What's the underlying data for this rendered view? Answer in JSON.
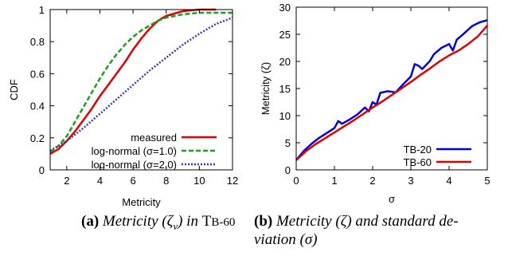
{
  "chart_data": [
    {
      "type": "line",
      "title": "",
      "xlabel": "Metricity",
      "ylabel": "CDF",
      "xlim": [
        1,
        12
      ],
      "ylim": [
        0,
        1
      ],
      "xticks": [
        "2",
        "4",
        "6",
        "8",
        "10",
        "12"
      ],
      "yticks": [
        "0",
        "0.2",
        "0.4",
        "0.6",
        "0.8",
        "1"
      ],
      "legend_position": "bottom-right",
      "series": [
        {
          "name": "measured",
          "color": "#e00000",
          "dash": "solid",
          "x": [
            1,
            1.5,
            2,
            2.5,
            3,
            3.5,
            4,
            4.5,
            5,
            5.5,
            6,
            6.5,
            7,
            7.5,
            8,
            9,
            10,
            11
          ],
          "y": [
            0.1,
            0.13,
            0.18,
            0.24,
            0.31,
            0.38,
            0.46,
            0.53,
            0.6,
            0.67,
            0.75,
            0.82,
            0.88,
            0.93,
            0.96,
            0.99,
            1.0,
            1.0
          ]
        },
        {
          "name": "log-normal (σ=1.0)",
          "color": "#1e9e1e",
          "dash": "dashed",
          "x": [
            1,
            1.5,
            2,
            2.5,
            3,
            3.5,
            4,
            4.5,
            5,
            5.5,
            6,
            6.5,
            7,
            7.5,
            8,
            9,
            10,
            11,
            12
          ],
          "y": [
            0.11,
            0.15,
            0.21,
            0.3,
            0.39,
            0.48,
            0.57,
            0.65,
            0.72,
            0.78,
            0.83,
            0.87,
            0.9,
            0.93,
            0.95,
            0.97,
            0.98,
            0.98,
            0.98
          ]
        },
        {
          "name": "log-normal (σ=2.0)",
          "color": "#3a3aa8",
          "dash": "dotted",
          "x": [
            1,
            2,
            3,
            4,
            5,
            6,
            7,
            8,
            9,
            10,
            11,
            12
          ],
          "y": [
            0.12,
            0.18,
            0.26,
            0.35,
            0.44,
            0.53,
            0.62,
            0.7,
            0.78,
            0.85,
            0.91,
            0.95
          ]
        }
      ]
    },
    {
      "type": "line",
      "title": "",
      "xlabel": "σ",
      "ylabel": "Metricity (ζ)",
      "xlim": [
        0,
        5
      ],
      "ylim": [
        0,
        30
      ],
      "xticks": [
        "0",
        "1",
        "2",
        "3",
        "4",
        "5"
      ],
      "yticks": [
        "0",
        "5",
        "10",
        "15",
        "20",
        "25",
        "30"
      ],
      "legend_position": "bottom-right",
      "series": [
        {
          "name": "TB-20",
          "color": "#0000e0",
          "x": [
            0,
            0.2,
            0.4,
            0.6,
            0.8,
            1.0,
            1.1,
            1.2,
            1.4,
            1.6,
            1.8,
            1.9,
            2.0,
            2.1,
            2.2,
            2.4,
            2.6,
            2.8,
            2.9,
            3.0,
            3.1,
            3.2,
            3.3,
            3.5,
            3.6,
            3.8,
            4.0,
            4.1,
            4.2,
            4.4,
            4.6,
            4.8,
            5.0
          ],
          "y": [
            1.8,
            3.5,
            4.8,
            5.9,
            6.8,
            7.7,
            9.0,
            8.5,
            9.3,
            10.2,
            11.5,
            10.8,
            12.5,
            12.0,
            14.2,
            14.5,
            14.3,
            15.8,
            16.5,
            17.2,
            19.5,
            19.2,
            18.6,
            20.1,
            21.3,
            22.5,
            23.2,
            22.0,
            24.0,
            25.2,
            26.5,
            27.2,
            27.6
          ]
        },
        {
          "name": "TB-60",
          "color": "#e00000",
          "x": [
            0,
            0.25,
            0.5,
            0.75,
            1.0,
            1.25,
            1.5,
            1.75,
            2.0,
            2.25,
            2.5,
            2.75,
            3.0,
            3.25,
            3.5,
            3.75,
            4.0,
            4.25,
            4.5,
            4.75,
            5.0
          ],
          "y": [
            1.8,
            3.4,
            4.7,
            5.8,
            6.9,
            8.0,
            9.1,
            10.3,
            11.5,
            12.6,
            13.8,
            15.0,
            16.2,
            17.5,
            18.7,
            20.0,
            21.1,
            22.0,
            23.2,
            24.6,
            26.6
          ]
        }
      ]
    }
  ],
  "captions": [
    {
      "label": "(a)",
      "text_1": "Metricity (",
      "sym": "ζ",
      "sub": "v",
      "text_2": ") in ",
      "tb_first": "T",
      "tb_rest": "B-60"
    },
    {
      "label": "(b)",
      "line1": "Metricity (ζ) and standard de-",
      "line2": "viation (σ)"
    }
  ]
}
